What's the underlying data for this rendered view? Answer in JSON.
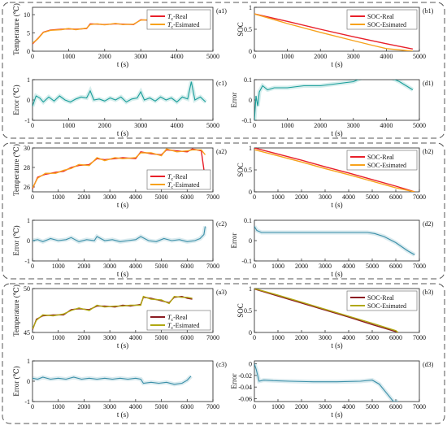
{
  "chart_data": [
    {
      "panel": "a1",
      "type": "line",
      "group": 1,
      "col": 0,
      "row": 0,
      "ylabel": "Temperature (℃)",
      "xlabel": "t (s)",
      "xlim": [
        0,
        5000
      ],
      "ylim": [
        0,
        12
      ],
      "xticks": [
        0,
        1000,
        2000,
        3000,
        4000,
        5000
      ],
      "yticks": [
        0,
        5,
        10
      ],
      "legend": "top-right",
      "series": [
        {
          "name": "Tc-Real",
          "label_main": "T",
          "label_sub": "c",
          "label_rest": "-Real",
          "color": "#e8202a",
          "x": [
            0,
            150,
            300,
            500,
            800,
            1000,
            1200,
            1500,
            1600,
            1800,
            2000,
            2300,
            2500,
            2800,
            3000,
            3200,
            3500,
            3800,
            4000,
            4300,
            4400,
            4600,
            4800
          ],
          "y": [
            2,
            3.5,
            5.2,
            5.8,
            6.0,
            6.1,
            6.0,
            6.2,
            7.5,
            7.4,
            7.3,
            7.5,
            7.4,
            7.3,
            8.6,
            8.5,
            8.4,
            8.3,
            8.4,
            8.5,
            10.5,
            10.2,
            9.8
          ]
        },
        {
          "name": "Tc-Esimated",
          "label_main": "T",
          "label_sub": "c",
          "label_rest": "-Esimated",
          "color": "#f7a21c",
          "x": [
            0,
            150,
            300,
            500,
            800,
            1000,
            1200,
            1500,
            1600,
            1800,
            2000,
            2300,
            2500,
            2800,
            3000,
            3200,
            3500,
            3800,
            4000,
            4300,
            4400,
            4600,
            4800
          ],
          "y": [
            2.2,
            3.4,
            5.1,
            5.7,
            5.9,
            6.2,
            5.9,
            6.3,
            7.3,
            7.5,
            7.2,
            7.6,
            7.3,
            7.4,
            8.5,
            8.6,
            8.3,
            8.4,
            8.3,
            8.6,
            10.2,
            10.3,
            9.6
          ]
        }
      ]
    },
    {
      "panel": "b1",
      "type": "line",
      "group": 1,
      "col": 1,
      "row": 0,
      "ylabel": "SOC",
      "xlabel": "t (s)",
      "xlim": [
        0,
        5000
      ],
      "ylim": [
        0,
        1
      ],
      "xticks": [
        0,
        1000,
        2000,
        3000,
        4000,
        5000
      ],
      "yticks": [
        0,
        0.5,
        1
      ],
      "legend": "top-right",
      "series": [
        {
          "name": "SOC-Real",
          "color": "#e8202a",
          "x": [
            0,
            1000,
            2000,
            3000,
            4000,
            4800
          ],
          "y": [
            0.85,
            0.68,
            0.5,
            0.33,
            0.17,
            0.05
          ]
        },
        {
          "name": "SOC-Esimated",
          "color": "#f7a21c",
          "x": [
            0,
            1000,
            2000,
            3000,
            3600,
            4000,
            4800
          ],
          "y": [
            0.85,
            0.63,
            0.43,
            0.24,
            0.13,
            0.06,
            0.0
          ]
        }
      ]
    },
    {
      "panel": "c1",
      "type": "line",
      "group": 1,
      "col": 0,
      "row": 1,
      "ylabel": "Error (℃)",
      "xlabel": "t (s)",
      "xlim": [
        0,
        5000
      ],
      "ylim": [
        -1,
        1
      ],
      "xticks": [
        0,
        1000,
        2000,
        3000,
        4000,
        5000
      ],
      "yticks": [
        -1,
        0,
        1
      ],
      "series": [
        {
          "name": "error",
          "color": "#1a9e9a",
          "x": [
            0,
            100,
            200,
            300,
            450,
            600,
            750,
            900,
            1050,
            1200,
            1350,
            1500,
            1600,
            1700,
            1850,
            2000,
            2150,
            2300,
            2450,
            2600,
            2750,
            2900,
            3000,
            3100,
            3250,
            3400,
            3550,
            3700,
            3850,
            4000,
            4150,
            4300,
            4400,
            4500,
            4650,
            4800
          ],
          "y": [
            -0.3,
            0.2,
            0.1,
            -0.1,
            0.15,
            -0.05,
            0.2,
            0.0,
            -0.1,
            0.05,
            0.15,
            0.1,
            0.45,
            0.0,
            0.05,
            -0.05,
            0.1,
            0.0,
            0.15,
            -0.1,
            0.05,
            0.1,
            0.4,
            0.0,
            0.1,
            -0.05,
            0.15,
            0.0,
            0.1,
            -0.1,
            0.15,
            0.05,
            0.9,
            0.0,
            0.15,
            -0.1
          ]
        }
      ]
    },
    {
      "panel": "d1",
      "type": "line",
      "group": 1,
      "col": 1,
      "row": 1,
      "ylabel": "Error",
      "xlabel": "t (s)",
      "xlim": [
        0,
        5000
      ],
      "ylim": [
        -0.1,
        0.1
      ],
      "xticks": [
        0,
        1000,
        2000,
        3000,
        4000,
        5000
      ],
      "yticks": [
        -0.1,
        0,
        0.1
      ],
      "series": [
        {
          "name": "error",
          "color": "#1a9e9a",
          "x": [
            0,
            50,
            100,
            150,
            250,
            400,
            600,
            1000,
            1500,
            2000,
            2500,
            3000,
            3400,
            3700,
            4000,
            4400,
            4800
          ],
          "y": [
            -0.1,
            0.02,
            -0.03,
            0.04,
            0.07,
            0.05,
            0.06,
            0.06,
            0.07,
            0.07,
            0.08,
            0.09,
            0.12,
            0.13,
            0.12,
            0.09,
            0.05
          ]
        }
      ]
    },
    {
      "panel": "a2",
      "type": "line",
      "group": 2,
      "col": 0,
      "row": 0,
      "ylabel": "Temperature (℃)",
      "xlabel": "t (s)",
      "xlim": [
        0,
        7000
      ],
      "ylim": [
        25.5,
        30
      ],
      "xticks": [
        0,
        1000,
        2000,
        3000,
        4000,
        5000,
        6000,
        7000
      ],
      "yticks": [
        26,
        28,
        30
      ],
      "legend": "bottom-right",
      "series": [
        {
          "name": "Tc-Real",
          "label_main": "T",
          "label_sub": "c",
          "label_rest": "-Real",
          "color": "#e8202a",
          "x": [
            0,
            200,
            500,
            900,
            1200,
            1500,
            1800,
            2200,
            2500,
            2800,
            3200,
            3500,
            4000,
            4200,
            4600,
            5000,
            5200,
            5600,
            6000,
            6200,
            6550,
            6700
          ],
          "y": [
            25.8,
            27.0,
            27.3,
            27.5,
            27.6,
            28.0,
            28.2,
            28.3,
            28.9,
            28.8,
            28.9,
            29.0,
            28.9,
            29.6,
            29.4,
            29.3,
            29.8,
            29.7,
            29.6,
            29.9,
            29.7,
            26.8
          ]
        },
        {
          "name": "Tc-Esimated",
          "label_main": "T",
          "label_sub": "c",
          "label_rest": "-Esimated",
          "color": "#f7a21c",
          "x": [
            0,
            200,
            500,
            900,
            1200,
            1500,
            1800,
            2200,
            2500,
            2800,
            3200,
            3500,
            4000,
            4200,
            4600,
            5000,
            5200,
            5600,
            6000,
            6200,
            6550,
            6700
          ],
          "y": [
            25.9,
            26.9,
            27.4,
            27.4,
            27.7,
            27.9,
            28.3,
            28.2,
            29.0,
            28.7,
            29.0,
            28.9,
            29.0,
            29.5,
            29.5,
            29.2,
            29.9,
            29.6,
            29.7,
            29.8,
            29.8,
            29.3
          ]
        }
      ]
    },
    {
      "panel": "b2",
      "type": "line",
      "group": 2,
      "col": 1,
      "row": 0,
      "ylabel": "SOC",
      "xlabel": "t (s)",
      "xlim": [
        0,
        7000
      ],
      "ylim": [
        0,
        1
      ],
      "xticks": [
        0,
        1000,
        2000,
        3000,
        4000,
        5000,
        6000,
        7000
      ],
      "yticks": [
        0,
        0.5,
        1
      ],
      "legend": "top-right",
      "series": [
        {
          "name": "SOC-Real",
          "color": "#e8202a",
          "x": [
            0,
            1000,
            2000,
            3000,
            4000,
            5000,
            6000,
            6800
          ],
          "y": [
            1.0,
            0.86,
            0.72,
            0.57,
            0.43,
            0.28,
            0.13,
            0.0
          ]
        },
        {
          "name": "SOC-Esimated",
          "color": "#f7a21c",
          "x": [
            0,
            1000,
            2000,
            3000,
            4000,
            5000,
            6000,
            6800
          ],
          "y": [
            0.96,
            0.82,
            0.68,
            0.53,
            0.39,
            0.24,
            0.09,
            0.0
          ]
        }
      ]
    },
    {
      "panel": "c2",
      "type": "line",
      "group": 2,
      "col": 0,
      "row": 1,
      "ylabel": "Error (℃)",
      "xlabel": "t (s)",
      "xlim": [
        0,
        7000
      ],
      "ylim": [
        -1,
        1
      ],
      "xticks": [
        0,
        1000,
        2000,
        3000,
        4000,
        5000,
        6000,
        7000
      ],
      "yticks": [
        -1,
        0,
        1
      ],
      "series": [
        {
          "name": "error",
          "color": "#3a8fa8",
          "x": [
            0,
            200,
            400,
            700,
            1000,
            1300,
            1500,
            1800,
            2100,
            2400,
            2500,
            2800,
            3100,
            3400,
            3700,
            4000,
            4200,
            4500,
            4800,
            5100,
            5400,
            5700,
            6000,
            6300,
            6500,
            6650,
            6700
          ],
          "y": [
            0.0,
            0.05,
            -0.05,
            0.1,
            0.0,
            0.05,
            0.15,
            -0.05,
            0.05,
            0.0,
            0.2,
            0.0,
            0.05,
            -0.05,
            0.0,
            0.05,
            0.2,
            0.0,
            -0.05,
            0.1,
            0.0,
            0.05,
            -0.05,
            0.0,
            0.1,
            0.3,
            0.7
          ]
        }
      ]
    },
    {
      "panel": "d2",
      "type": "line",
      "group": 2,
      "col": 1,
      "row": 1,
      "ylabel": "Error",
      "xlabel": "t (s)",
      "xlim": [
        0,
        7000
      ],
      "ylim": [
        -0.1,
        0.1
      ],
      "xticks": [
        0,
        1000,
        2000,
        3000,
        4000,
        5000,
        6000,
        7000
      ],
      "yticks": [
        -0.1,
        0,
        0.1
      ],
      "series": [
        {
          "name": "error",
          "color": "#3a8fa8",
          "x": [
            0,
            100,
            300,
            1000,
            2000,
            3000,
            4000,
            4800,
            5100,
            5500,
            6000,
            6500,
            6800
          ],
          "y": [
            0.07,
            0.05,
            0.04,
            0.04,
            0.04,
            0.04,
            0.04,
            0.04,
            0.035,
            0.02,
            -0.01,
            -0.05,
            -0.07
          ]
        }
      ]
    },
    {
      "panel": "a3",
      "type": "line",
      "group": 3,
      "col": 0,
      "row": 0,
      "ylabel": "Temperature (℃)",
      "xlabel": "t (s)",
      "xlim": [
        0,
        7000
      ],
      "ylim": [
        45,
        50
      ],
      "xticks": [
        0,
        1000,
        2000,
        3000,
        4000,
        5000,
        6000,
        7000
      ],
      "yticks": [
        45,
        50
      ],
      "legend": "bottom-right",
      "series": [
        {
          "name": "Tc-Real",
          "label_main": "T",
          "label_sub": "c",
          "label_rest": "-Real",
          "color": "#8b1c22",
          "x": [
            0,
            150,
            400,
            800,
            1200,
            1500,
            1800,
            2200,
            2500,
            2800,
            3200,
            3500,
            3800,
            4200,
            4300,
            4600,
            5000,
            5300,
            5500,
            5800,
            6000,
            6200
          ],
          "y": [
            45.3,
            46.5,
            46.9,
            47.0,
            47.0,
            47.6,
            47.7,
            47.6,
            48.0,
            48.0,
            47.9,
            48.1,
            48.0,
            48.2,
            49.0,
            48.9,
            48.6,
            48.4,
            49.0,
            49.1,
            48.9,
            48.8
          ]
        },
        {
          "name": "Tc-Esimated",
          "label_main": "T",
          "label_sub": "c",
          "label_rest": "-Esimated",
          "color": "#b0a812",
          "x": [
            0,
            150,
            400,
            800,
            1200,
            1500,
            1800,
            2200,
            2500,
            2800,
            3200,
            3500,
            3800,
            4200,
            4300,
            4600,
            5000,
            5300,
            5500,
            5800,
            6000,
            6200
          ],
          "y": [
            45.4,
            46.4,
            47.0,
            46.9,
            47.1,
            47.5,
            47.8,
            47.5,
            48.1,
            47.9,
            48.0,
            48.0,
            48.1,
            48.1,
            49.1,
            48.8,
            48.7,
            48.3,
            49.1,
            49.0,
            49.0,
            48.9
          ]
        }
      ]
    },
    {
      "panel": "b3",
      "type": "line",
      "group": 3,
      "col": 1,
      "row": 0,
      "ylabel": "SOC",
      "xlabel": "t (s)",
      "xlim": [
        0,
        7000
      ],
      "ylim": [
        0,
        1
      ],
      "xticks": [
        0,
        1000,
        2000,
        3000,
        4000,
        5000,
        6000,
        7000
      ],
      "yticks": [
        0,
        0.5,
        1
      ],
      "legend": "top-right",
      "series": [
        {
          "name": "SOC-Real",
          "color": "#8b1c22",
          "x": [
            0,
            1000,
            2000,
            3000,
            4000,
            5000,
            6000,
            6100
          ],
          "y": [
            0.99,
            0.83,
            0.67,
            0.51,
            0.35,
            0.18,
            0.02,
            0.0
          ]
        },
        {
          "name": "SOC-Esimated",
          "color": "#b0a812",
          "x": [
            0,
            1000,
            2000,
            3000,
            4000,
            5000,
            6000,
            6100
          ],
          "y": [
            1.0,
            0.85,
            0.69,
            0.53,
            0.37,
            0.21,
            0.04,
            0.0
          ]
        }
      ]
    },
    {
      "panel": "c3",
      "type": "line",
      "group": 3,
      "col": 0,
      "row": 1,
      "ylabel": "Error (℃)",
      "xlabel": "t (s)",
      "xlim": [
        0,
        7000
      ],
      "ylim": [
        -1,
        1
      ],
      "xticks": [
        0,
        1000,
        2000,
        3000,
        4000,
        5000,
        6000,
        7000
      ],
      "yticks": [
        -1,
        0,
        1
      ],
      "series": [
        {
          "name": "error",
          "color": "#3a8fa8",
          "x": [
            0,
            200,
            400,
            700,
            1000,
            1300,
            1600,
            1900,
            2200,
            2500,
            2800,
            3100,
            3400,
            3700,
            4000,
            4200,
            4300,
            4600,
            4900,
            5200,
            5500,
            5800,
            6000,
            6150
          ],
          "y": [
            0.15,
            0.1,
            0.2,
            0.1,
            0.15,
            0.1,
            0.2,
            0.1,
            0.15,
            0.1,
            0.15,
            0.1,
            0.15,
            0.1,
            0.15,
            0.1,
            -0.1,
            -0.05,
            -0.1,
            -0.05,
            -0.15,
            -0.1,
            0.05,
            0.25
          ]
        }
      ]
    },
    {
      "panel": "d3",
      "type": "line",
      "group": 3,
      "col": 1,
      "row": 1,
      "ylabel": "Error",
      "xlabel": "t (s)",
      "xlim": [
        0,
        7000
      ],
      "ylim": [
        -0.065,
        0.005
      ],
      "xticks": [
        0,
        1000,
        2000,
        3000,
        4000,
        5000,
        6000,
        7000
      ],
      "yticks": [
        -0.06,
        -0.04,
        -0.02,
        0
      ],
      "series": [
        {
          "name": "error",
          "color": "#3a8fa8",
          "x": [
            0,
            80,
            200,
            400,
            800,
            1500,
            2500,
            3500,
            4500,
            5000,
            5300,
            5600,
            5900,
            6100
          ],
          "y": [
            0.0,
            -0.01,
            -0.03,
            -0.028,
            -0.029,
            -0.03,
            -0.031,
            -0.031,
            -0.03,
            -0.028,
            -0.035,
            -0.05,
            -0.065,
            -0.065
          ]
        }
      ]
    }
  ]
}
